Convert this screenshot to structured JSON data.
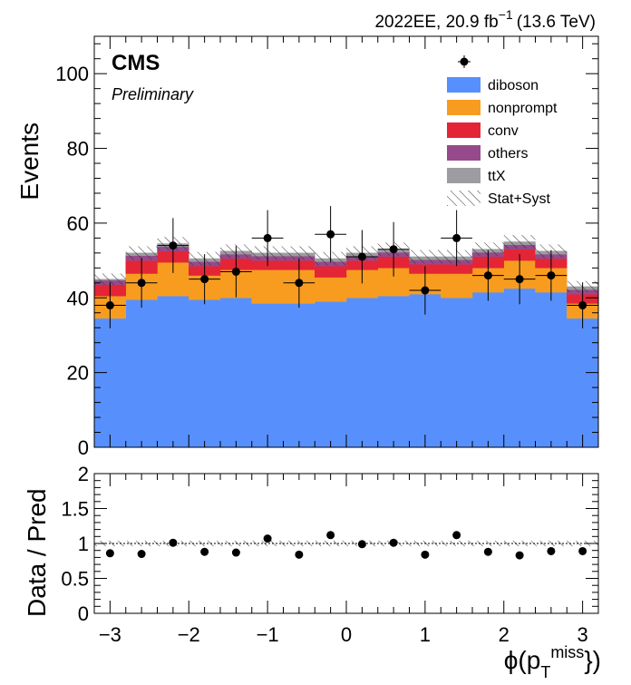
{
  "chart_data": {
    "type": "bar",
    "stacked": true,
    "header_right": "2022EE, 20.9 fb",
    "header_right_exponent": "−1",
    "header_right_energy": "(13.6 TeV)",
    "experiment": "CMS",
    "status": "Preliminary",
    "ylabel": "Events",
    "ratio_ylabel": "Data / Pred",
    "xlabel": "ϕ(p",
    "xlabel_sub": "T",
    "xlabel_sup": "miss",
    "xlabel_close": "})",
    "xlim": [
      -3.2,
      3.2
    ],
    "ylim": [
      0,
      110
    ],
    "ratio_ylim": [
      0,
      2
    ],
    "grid": false,
    "legend_position": "top-right",
    "bin_edges": [
      -3.2,
      -2.8,
      -2.4,
      -2.0,
      -1.6,
      -1.2,
      -0.8,
      -0.4,
      0.0,
      0.4,
      0.8,
      1.2,
      1.6,
      2.0,
      2.4,
      2.8,
      3.2
    ],
    "x_ticks": [
      -3,
      -2,
      -1,
      0,
      1,
      2,
      3
    ],
    "x_tick_labels": [
      "−3",
      "−2",
      "−1",
      "0",
      "1",
      "2",
      "3"
    ],
    "y_ticks": [
      0,
      20,
      40,
      60,
      80,
      100
    ],
    "y_tick_labels": [
      "0",
      "20",
      "40",
      "60",
      "80",
      "100"
    ],
    "ratio_y_ticks": [
      0,
      0.5,
      1,
      1.5,
      2
    ],
    "ratio_y_tick_labels": [
      "0",
      "0.5",
      "1",
      "1.5",
      "2"
    ],
    "series": [
      {
        "name": "diboson",
        "color": "#5790fc",
        "values": [
          34.5,
          39.5,
          40.5,
          39.5,
          40.0,
          38.5,
          38.5,
          39.0,
          40.0,
          40.5,
          41.0,
          40.0,
          41.5,
          42.5,
          41.5,
          34.5
        ]
      },
      {
        "name": "nonprompt",
        "color": "#f89c20",
        "values": [
          6.0,
          7.0,
          9.0,
          6.5,
          7.5,
          9.0,
          9.0,
          6.5,
          7.5,
          7.5,
          5.5,
          6.5,
          6.5,
          7.5,
          6.5,
          4.0
        ]
      },
      {
        "name": "conv",
        "color": "#e42536",
        "values": [
          3.0,
          3.5,
          3.0,
          2.5,
          3.0,
          2.5,
          2.5,
          3.0,
          2.5,
          3.0,
          2.5,
          2.5,
          3.0,
          3.0,
          2.5,
          2.5
        ]
      },
      {
        "name": "others",
        "color": "#964a8b",
        "values": [
          1.2,
          1.3,
          1.2,
          1.2,
          1.2,
          1.2,
          1.2,
          1.2,
          1.2,
          1.2,
          1.2,
          1.2,
          1.2,
          1.2,
          1.2,
          1.2
        ]
      },
      {
        "name": "ttX",
        "color": "#9c9ca1",
        "values": [
          0.3,
          0.7,
          0.8,
          0.8,
          0.8,
          0.8,
          0.8,
          0.8,
          0.8,
          0.8,
          0.8,
          0.8,
          0.8,
          0.8,
          0.8,
          0.8
        ]
      }
    ],
    "data_label": "",
    "uncertainty_label": "Stat+Syst",
    "stack_uncertainty": [
      1.5,
      1.8,
      1.8,
      1.8,
      1.8,
      1.8,
      1.8,
      1.8,
      1.8,
      1.8,
      1.8,
      1.8,
      1.8,
      1.8,
      1.8,
      1.5
    ],
    "data": {
      "x": [
        -3.0,
        -2.6,
        -2.2,
        -1.8,
        -1.4,
        -1.0,
        -0.6,
        -0.2,
        0.2,
        0.6,
        1.0,
        1.4,
        1.8,
        2.2,
        2.6,
        3.0
      ],
      "values": [
        38,
        44,
        54,
        45,
        47,
        56,
        44,
        57,
        51,
        53,
        42,
        56,
        46,
        45,
        46,
        38
      ]
    },
    "ratio": {
      "values": [
        0.86,
        0.85,
        1.01,
        0.88,
        0.87,
        1.07,
        0.84,
        1.12,
        0.99,
        1.01,
        0.84,
        1.12,
        0.88,
        0.83,
        0.89,
        0.89
      ],
      "uncertainty": [
        0.04,
        0.04,
        0.04,
        0.04,
        0.04,
        0.04,
        0.04,
        0.04,
        0.04,
        0.04,
        0.04,
        0.04,
        0.04,
        0.04,
        0.04,
        0.04
      ]
    }
  }
}
